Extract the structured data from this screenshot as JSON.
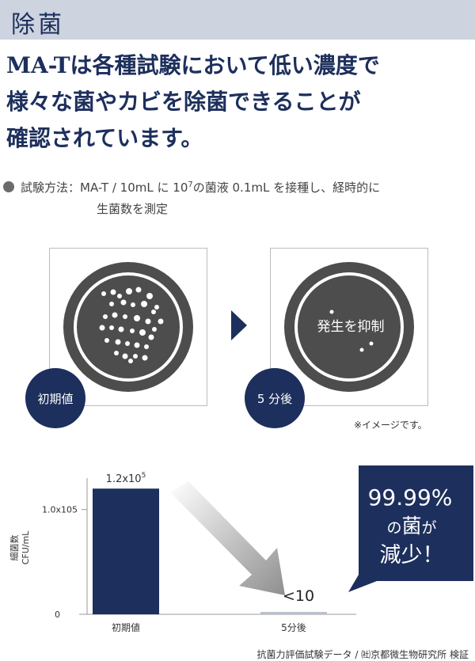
{
  "header": {
    "title": "除菌"
  },
  "headline": {
    "lines": [
      "MA-Tは各種試験において低い濃度で",
      "様々な菌やカビを除菌できることが",
      "確認されています。"
    ]
  },
  "method": {
    "label": "試験方法：",
    "text_pre": "MA-T / 10mL に 10",
    "exponent": "7",
    "text_post": "の菌液 0.1mL を接種し、経時的に",
    "line2": "生菌数を測定"
  },
  "petri": {
    "initial_badge": "初期値",
    "after_badge": "5 分後",
    "after_label": "発生を抑制",
    "note": "※イメージです。"
  },
  "chart_data": {
    "type": "bar",
    "categories": [
      "初期値",
      "5分後"
    ],
    "values": [
      120000,
      10
    ],
    "value_labels": [
      "1.2x10",
      "<10"
    ],
    "value_label_exponent": "5",
    "ylabel_line1": "細菌数",
    "ylabel_line2": "CFU/mL",
    "y_ticks": [
      {
        "value": 0,
        "label": "0"
      },
      {
        "value": 100000,
        "label": "1.0x105"
      }
    ],
    "ylim": [
      0,
      130000
    ],
    "bar_colors": [
      "#1d2f5c",
      "#b9c1cf"
    ]
  },
  "callout": {
    "percent": "99.99%",
    "line2_pre": "の",
    "line2_big": "菌",
    "line2_post": "が",
    "line3": "減少！",
    "color": "#1d2f5c"
  },
  "source": "抗菌力評価試験データ / ㈳京都微生物研究所 検証"
}
